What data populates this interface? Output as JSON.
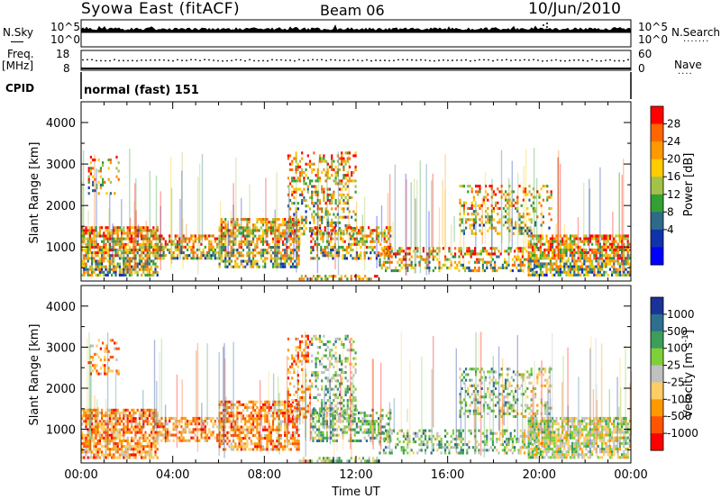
{
  "header": {
    "station": "Syowa East (fitACF)",
    "beam": "Beam 06",
    "date": "10/Jun/2010"
  },
  "top_panels": {
    "nsky_label": "N.Sky",
    "nsky_ticks": [
      "10^5",
      "10^0"
    ],
    "nsearch_label": "N.Search",
    "nsearch_ticks": [
      "10^5",
      "10^0"
    ],
    "freq_label": "Freq.",
    "freq_unit": "[MHz]",
    "freq_ticks": [
      "18",
      "8"
    ],
    "nave_label": "Nave",
    "nave_ticks": [
      "60",
      "0"
    ],
    "cpid_label": "CPID",
    "cpid_value": "normal (fast) 151"
  },
  "chart_data": [
    {
      "type": "heatmap",
      "name": "power",
      "xlabel": "",
      "ylabel": "Slant Range [km]",
      "y_ticks": [
        "1000",
        "2000",
        "3000",
        "4000"
      ],
      "ylim": [
        180,
        4500
      ],
      "xlim": [
        0,
        24
      ],
      "colorbar_label": "Power [dB]",
      "colorbar_ticks": [
        "28",
        "24",
        "20",
        "16",
        "12",
        "8",
        "4"
      ],
      "colorbar_colors": [
        "#ff0000",
        "#ff6600",
        "#ff9900",
        "#ffcc00",
        "#a3c24a",
        "#33a033",
        "#2e6a8a",
        "#1133aa",
        "#0000ff"
      ],
      "echo_regions": [
        {
          "t0": 0.0,
          "t1": 3.3,
          "r0": 300,
          "r1": 1500,
          "density": 0.75
        },
        {
          "t0": 0.3,
          "t1": 1.6,
          "r0": 2300,
          "r1": 3200,
          "density": 0.25
        },
        {
          "t0": 3.3,
          "t1": 6.0,
          "r0": 700,
          "r1": 1300,
          "density": 0.6
        },
        {
          "t0": 6.0,
          "t1": 9.5,
          "r0": 500,
          "r1": 1700,
          "density": 0.65
        },
        {
          "t0": 9.0,
          "t1": 12.0,
          "r0": 1300,
          "r1": 3300,
          "density": 0.35
        },
        {
          "t0": 10.0,
          "t1": 13.5,
          "r0": 700,
          "r1": 1500,
          "density": 0.5
        },
        {
          "t0": 13.0,
          "t1": 20.0,
          "r0": 400,
          "r1": 1000,
          "density": 0.4
        },
        {
          "t0": 16.5,
          "t1": 20.5,
          "r0": 1300,
          "r1": 2500,
          "density": 0.3
        },
        {
          "t0": 19.5,
          "t1": 24.0,
          "r0": 300,
          "r1": 1300,
          "density": 0.75
        },
        {
          "t0": 9.5,
          "t1": 13.0,
          "r0": 200,
          "r1": 330,
          "density": 0.6
        }
      ]
    },
    {
      "type": "heatmap",
      "name": "velocity",
      "xlabel": "Time UT",
      "ylabel": "Slant Range [km]",
      "x_ticks": [
        "00:00",
        "04:00",
        "08:00",
        "12:00",
        "16:00",
        "20:00",
        "00:00"
      ],
      "y_ticks": [
        "1000",
        "2000",
        "3000",
        "4000"
      ],
      "ylim": [
        180,
        4500
      ],
      "xlim": [
        0,
        24
      ],
      "colorbar_label": "Velocity [m s-1]",
      "colorbar_ticks": [
        "1000",
        "500",
        "100",
        "25",
        "-25",
        "-100",
        "-500",
        "-1000"
      ],
      "colorbar_colors": [
        "#1a3399",
        "#2e6e8e",
        "#3d9e5a",
        "#7ecf3a",
        "#c0c0c0",
        "#ffcc66",
        "#ff9900",
        "#ff5500",
        "#ff0000"
      ],
      "echo_regions": [
        {
          "t0": 0.0,
          "t1": 3.3,
          "r0": 300,
          "r1": 1500,
          "density": 0.75
        },
        {
          "t0": 0.3,
          "t1": 1.6,
          "r0": 2300,
          "r1": 3200,
          "density": 0.25
        },
        {
          "t0": 3.3,
          "t1": 6.0,
          "r0": 700,
          "r1": 1300,
          "density": 0.6
        },
        {
          "t0": 6.0,
          "t1": 9.5,
          "r0": 500,
          "r1": 1700,
          "density": 0.65
        },
        {
          "t0": 9.0,
          "t1": 12.0,
          "r0": 1300,
          "r1": 3300,
          "density": 0.35
        },
        {
          "t0": 10.0,
          "t1": 13.5,
          "r0": 700,
          "r1": 1500,
          "density": 0.5
        },
        {
          "t0": 13.0,
          "t1": 20.0,
          "r0": 400,
          "r1": 1000,
          "density": 0.4
        },
        {
          "t0": 16.5,
          "t1": 20.5,
          "r0": 1300,
          "r1": 2500,
          "density": 0.3
        },
        {
          "t0": 19.5,
          "t1": 24.0,
          "r0": 300,
          "r1": 1300,
          "density": 0.75
        },
        {
          "t0": 9.5,
          "t1": 13.0,
          "r0": 200,
          "r1": 330,
          "density": 0.6
        }
      ]
    }
  ]
}
